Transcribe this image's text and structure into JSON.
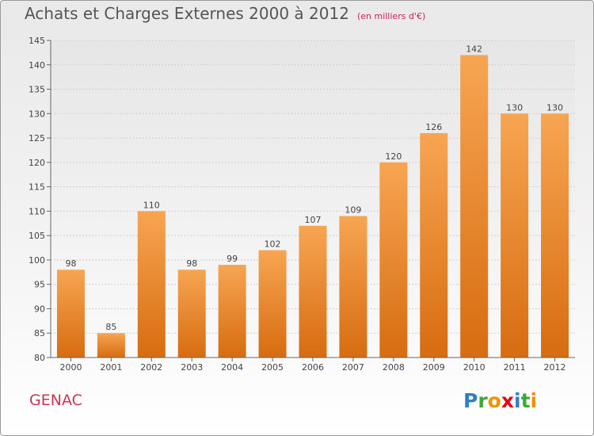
{
  "title": "Achats et Charges Externes 2000 à 2012",
  "unit_note": "(en milliers d'€)",
  "commune": "GENAC",
  "logo": {
    "text": "Proxiti",
    "letters": [
      "P",
      "r",
      "o",
      "x",
      "i",
      "t",
      "i"
    ],
    "colors": [
      "#2f7fc6",
      "#3aaa35",
      "#f29100",
      "#e2001a",
      "#2f7fc6",
      "#3aaa35",
      "#f29100"
    ]
  },
  "colors": {
    "bar_top": "#f7a552",
    "bar_bottom": "#d76c10",
    "accent": "#cc3355"
  },
  "chart_data": {
    "type": "bar",
    "title": "Achats et Charges Externes 2000 à 2012",
    "ylabel": "(en milliers d'€)",
    "categories": [
      "2000",
      "2001",
      "2002",
      "2003",
      "2004",
      "2005",
      "2006",
      "2007",
      "2008",
      "2009",
      "2010",
      "2011",
      "2012"
    ],
    "values": [
      98,
      85,
      110,
      98,
      99,
      102,
      107,
      109,
      120,
      126,
      142,
      130,
      130
    ],
    "ylim": [
      80,
      145
    ],
    "yticks": [
      80,
      85,
      90,
      95,
      100,
      105,
      110,
      115,
      120,
      125,
      130,
      135,
      140,
      145
    ],
    "grid": true
  }
}
